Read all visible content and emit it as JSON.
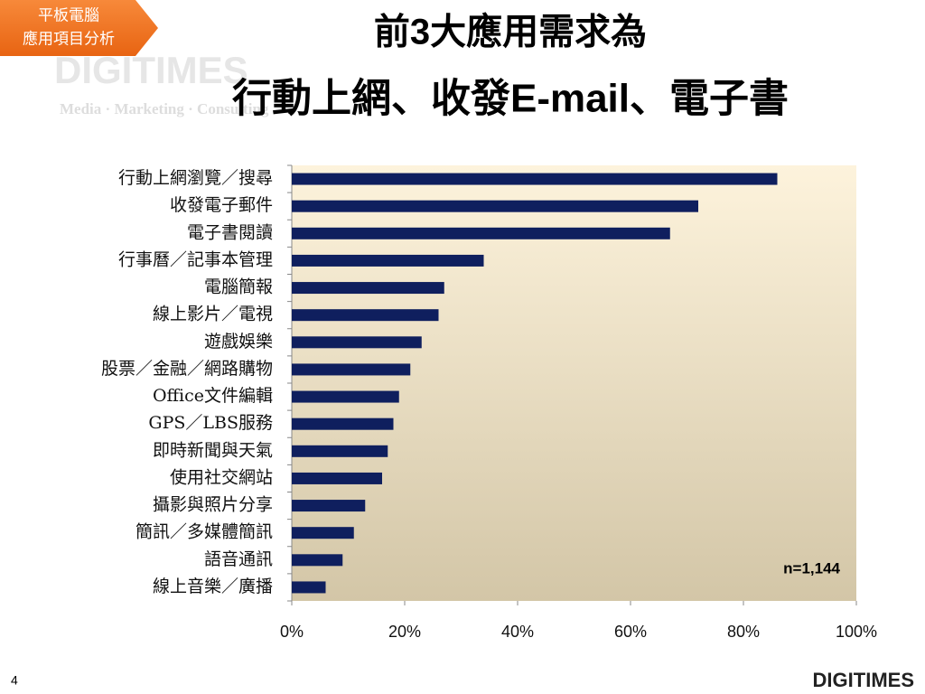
{
  "badge": [
    "平板電腦",
    "應用項目分析"
  ],
  "watermark": [
    "DIGITIMES",
    "Media · Marketing · Consulting"
  ],
  "page_number": "4",
  "logo": "DIGITIMES",
  "chart_data": {
    "type": "bar",
    "orientation": "horizontal",
    "title": "前3大應用需求為",
    "subtitle": "行動上網、收發E-mail、電子書",
    "categories": [
      "行動上網瀏覽／搜尋",
      "收發電子郵件",
      "電子書閱讀",
      "行事曆／記事本管理",
      "電腦簡報",
      "線上影片／電視",
      "遊戲娛樂",
      "股票／金融／網路購物",
      "Office文件編輯",
      "GPS／LBS服務",
      "即時新聞與天氣",
      "使用社交網站",
      "攝影與照片分享",
      "簡訊／多媒體簡訊",
      "語音通訊",
      "線上音樂／廣播"
    ],
    "values": [
      86,
      72,
      67,
      34,
      27,
      26,
      23,
      21,
      19,
      18,
      17,
      16,
      13,
      11,
      9,
      6
    ],
    "color": "#0f1f5e",
    "xlim": [
      0,
      100
    ],
    "xticks": [
      {
        "value": 0,
        "label": "0%"
      },
      {
        "value": 20,
        "label": "20%"
      },
      {
        "value": 40,
        "label": "40%"
      },
      {
        "value": 60,
        "label": "60%"
      },
      {
        "value": 80,
        "label": "80%"
      },
      {
        "value": 100,
        "label": "100%"
      }
    ],
    "annotation": "n=1,144"
  }
}
